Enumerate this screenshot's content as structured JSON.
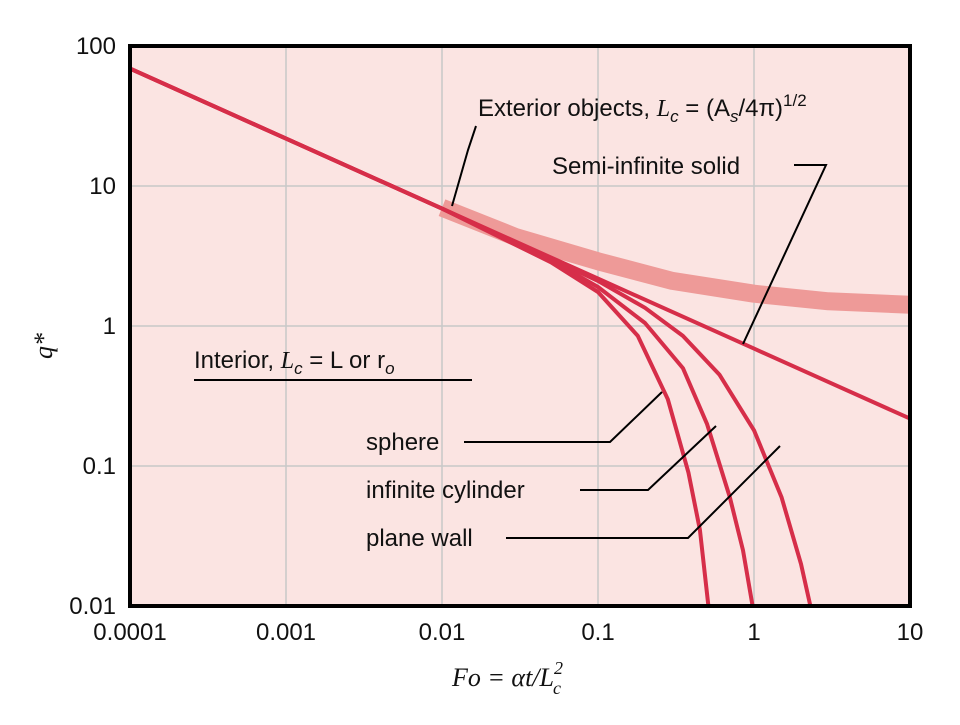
{
  "chart_data": {
    "type": "line",
    "x_scale": "log",
    "y_scale": "log",
    "xlim": [
      0.0001,
      10
    ],
    "ylim": [
      0.01,
      100
    ],
    "grid": true,
    "x_ticks": [
      0.0001,
      0.001,
      0.01,
      0.1,
      1,
      10
    ],
    "y_ticks": [
      0.01,
      0.1,
      1,
      10,
      100
    ],
    "x_tick_labels": [
      "0.0001",
      "0.001",
      "0.01",
      "0.1",
      "1",
      "10"
    ],
    "y_tick_labels": [
      "0.01",
      "0.1",
      "1",
      "10",
      "100"
    ],
    "xlabel": {
      "main": "Fo = αt/L",
      "sup": "2",
      "sub": "c"
    },
    "ylabel": {
      "main": "q*"
    },
    "colors": {
      "background": "#fbe4e2",
      "grid": "#c8c8c8",
      "curve": "#d62e49",
      "band": "#ee9a98",
      "frame": "#000000"
    },
    "series": [
      {
        "key": "semi_infinite",
        "x": [
          0.0001,
          0.001,
          0.01,
          0.1,
          1,
          10
        ],
        "y": [
          69,
          21.8,
          6.9,
          2.18,
          0.69,
          0.218
        ]
      },
      {
        "key": "plane_wall",
        "x": [
          0.0001,
          0.001,
          0.01,
          0.05,
          0.1,
          0.2,
          0.35,
          0.6,
          1,
          1.5,
          2,
          2.3
        ],
        "y": [
          69,
          21.8,
          6.9,
          3.02,
          2.1,
          1.35,
          0.85,
          0.45,
          0.18,
          0.06,
          0.02,
          0.01
        ]
      },
      {
        "key": "infinite_cylinder",
        "x": [
          0.0001,
          0.001,
          0.01,
          0.05,
          0.1,
          0.2,
          0.35,
          0.5,
          0.7,
          0.85,
          0.98
        ],
        "y": [
          69,
          21.8,
          6.9,
          2.95,
          1.9,
          1.05,
          0.5,
          0.2,
          0.06,
          0.025,
          0.01
        ]
      },
      {
        "key": "sphere",
        "x": [
          0.0001,
          0.001,
          0.01,
          0.05,
          0.1,
          0.18,
          0.28,
          0.38,
          0.45,
          0.51
        ],
        "y": [
          69,
          21.8,
          6.9,
          2.85,
          1.75,
          0.85,
          0.3,
          0.09,
          0.035,
          0.01
        ]
      },
      {
        "key": "exterior_band",
        "x": [
          0.01,
          0.03,
          0.1,
          0.3,
          1,
          3,
          10
        ],
        "y": [
          7.0,
          4.3,
          2.9,
          2.1,
          1.7,
          1.5,
          1.42
        ]
      }
    ],
    "annotations": {
      "exterior": {
        "prefix": "Exterior objects, ",
        "lc": "L",
        "lc_sub": "c",
        "eq": " = (A",
        "as_sub": "s",
        "tail": "/4π)",
        "sup": "1/2"
      },
      "semi_infinite": {
        "text": "Semi-infinite solid"
      },
      "interior": {
        "prefix": "Interior, ",
        "lc": "L",
        "lc_sub": "c",
        "mid": " = L or r",
        "ro_sub": "o"
      },
      "sphere": {
        "text": "sphere"
      },
      "infinite_cylinder": {
        "text": "infinite cylinder"
      },
      "plane_wall": {
        "text": "plane wall"
      }
    }
  }
}
